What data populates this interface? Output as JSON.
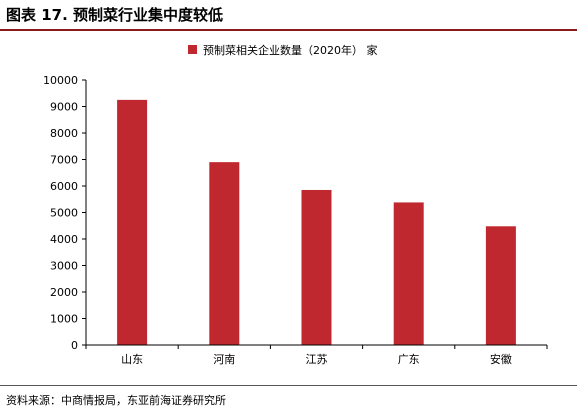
{
  "figure_title": "图表 17. 预制菜行业集中度较低",
  "source_note": "资料来源：中商情报局，东亚前海证券研究所",
  "colors": {
    "bar": "#c0282f",
    "title_rule": "#8b1a1a"
  },
  "chart_data": {
    "type": "bar",
    "title": "",
    "xlabel": "",
    "ylabel": "",
    "categories": [
      "山东",
      "河南",
      "江苏",
      "广东",
      "安徽"
    ],
    "series": [
      {
        "name": "预制菜相关企业数量（2020年） 家",
        "values": [
          9250,
          6900,
          5850,
          5380,
          4480
        ]
      }
    ],
    "ylim": [
      0,
      10000
    ],
    "yticks": [
      0,
      1000,
      2000,
      3000,
      4000,
      5000,
      6000,
      7000,
      8000,
      9000,
      10000
    ],
    "grid": false,
    "legend_position": "top-center"
  }
}
